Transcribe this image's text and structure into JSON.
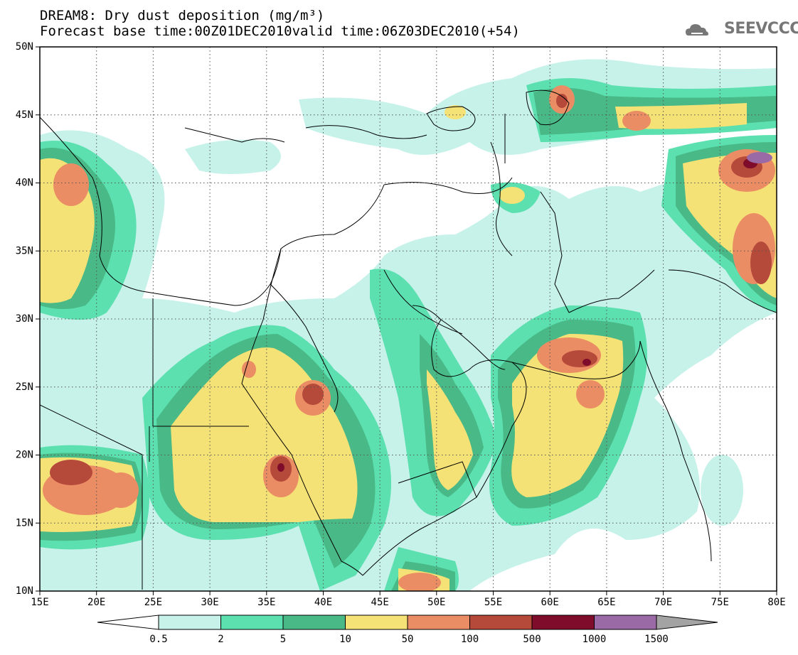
{
  "title_line1": "DREAM8: Dry dust deposition (mg/m³)",
  "title_line2": "Forecast base time:00Z01DEC2010valid time:06Z03DEC2010(+54)",
  "logo_text": "SEEVCCC",
  "axes": {
    "lon_labels": [
      "15E",
      "20E",
      "25E",
      "30E",
      "35E",
      "40E",
      "45E",
      "50E",
      "55E",
      "60E",
      "65E",
      "70E",
      "75E",
      "80E"
    ],
    "lat_labels": [
      "10N",
      "15N",
      "20N",
      "25N",
      "30N",
      "35N",
      "40N",
      "45N",
      "50N"
    ]
  },
  "legend": {
    "labels": [
      "0.5",
      "2",
      "5",
      "10",
      "50",
      "100",
      "500",
      "1000",
      "1500"
    ],
    "colors": [
      "#ffffff",
      "#c6f2ea",
      "#5de0b0",
      "#49b987",
      "#f5e276",
      "#eb8d64",
      "#b5493a",
      "#7e0c2a",
      "#9a6aa6",
      "#a3a3a3"
    ]
  },
  "palette": {
    "c1": "#c6f2ea",
    "c2": "#5de0b0",
    "c3": "#49b987",
    "c4": "#f5e276",
    "c5": "#eb8d64",
    "c6": "#b5493a",
    "c7": "#7e0c2a",
    "c8": "#9a6aa6"
  }
}
